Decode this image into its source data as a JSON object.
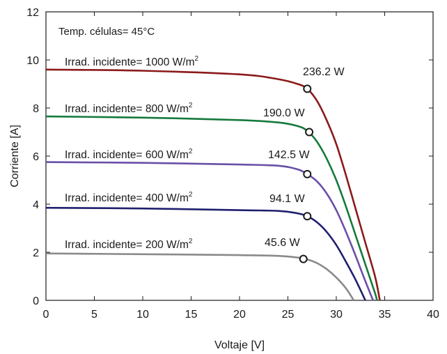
{
  "chart_data": {
    "type": "line",
    "title": "",
    "xlabel": "Voltaje [V]",
    "ylabel": "Corriente [A]",
    "xlim": [
      0,
      40
    ],
    "ylim": [
      0,
      12
    ],
    "xticks": [
      0,
      5,
      10,
      15,
      20,
      25,
      30,
      35,
      40
    ],
    "yticks": [
      0,
      2,
      4,
      6,
      8,
      10,
      12
    ],
    "grid": false,
    "annotation": "Temp. células= 45°C",
    "series": [
      {
        "name": "Irrad. incidente= 1000 W/m",
        "name_sup": "2",
        "color": "#8b1a1a",
        "points": [
          [
            0,
            9.6
          ],
          [
            10,
            9.55
          ],
          [
            20,
            9.4
          ],
          [
            24,
            9.2
          ],
          [
            26,
            9.0
          ],
          [
            27,
            8.8
          ],
          [
            28,
            8.3
          ],
          [
            29,
            7.5
          ],
          [
            30,
            6.5
          ],
          [
            31,
            5.2
          ],
          [
            32,
            3.8
          ],
          [
            33,
            2.4
          ],
          [
            34,
            1.0
          ],
          [
            34.5,
            0
          ]
        ],
        "mpp": {
          "v": 27.0,
          "i": 8.8,
          "power_label": "236.2 W"
        }
      },
      {
        "name": "Irrad. incidente= 800 W/m",
        "name_sup": "2",
        "color": "#157a3c",
        "points": [
          [
            0,
            7.65
          ],
          [
            10,
            7.6
          ],
          [
            20,
            7.5
          ],
          [
            24,
            7.4
          ],
          [
            26,
            7.25
          ],
          [
            27,
            7.05
          ],
          [
            28,
            6.6
          ],
          [
            29,
            5.9
          ],
          [
            30,
            5.0
          ],
          [
            31,
            3.9
          ],
          [
            32,
            2.7
          ],
          [
            33,
            1.5
          ],
          [
            34,
            0.3
          ],
          [
            34.2,
            0
          ]
        ],
        "mpp": {
          "v": 27.2,
          "i": 7.0,
          "power_label": "190.0 W"
        }
      },
      {
        "name": "Irrad. incidente= 600 W/m",
        "name_sup": "2",
        "color": "#6a4fa8",
        "points": [
          [
            0,
            5.75
          ],
          [
            10,
            5.72
          ],
          [
            20,
            5.65
          ],
          [
            24,
            5.6
          ],
          [
            26,
            5.45
          ],
          [
            27,
            5.25
          ],
          [
            28,
            4.95
          ],
          [
            29,
            4.45
          ],
          [
            30,
            3.75
          ],
          [
            31,
            2.85
          ],
          [
            32,
            1.85
          ],
          [
            33,
            0.8
          ],
          [
            33.8,
            0
          ]
        ],
        "mpp": {
          "v": 27.0,
          "i": 5.25,
          "power_label": "142.5 W"
        }
      },
      {
        "name": "Irrad. incidente= 400 W/m",
        "name_sup": "2",
        "color": "#1f1f6e",
        "points": [
          [
            0,
            3.85
          ],
          [
            10,
            3.82
          ],
          [
            20,
            3.75
          ],
          [
            24,
            3.72
          ],
          [
            26,
            3.62
          ],
          [
            27,
            3.5
          ],
          [
            28,
            3.25
          ],
          [
            29,
            2.85
          ],
          [
            30,
            2.3
          ],
          [
            31,
            1.6
          ],
          [
            32,
            0.85
          ],
          [
            33,
            0
          ]
        ],
        "mpp": {
          "v": 27.0,
          "i": 3.5,
          "power_label": "94.1 W"
        }
      },
      {
        "name": "Irrad. incidente= 200 W/m",
        "name_sup": "2",
        "color": "#8a8a8a",
        "points": [
          [
            0,
            1.95
          ],
          [
            10,
            1.92
          ],
          [
            20,
            1.88
          ],
          [
            24,
            1.85
          ],
          [
            26,
            1.78
          ],
          [
            27,
            1.7
          ],
          [
            28,
            1.55
          ],
          [
            29,
            1.3
          ],
          [
            30,
            0.95
          ],
          [
            31,
            0.5
          ],
          [
            31.8,
            0
          ]
        ],
        "mpp": {
          "v": 26.6,
          "i": 1.72,
          "power_label": "45.6 W"
        }
      }
    ]
  }
}
